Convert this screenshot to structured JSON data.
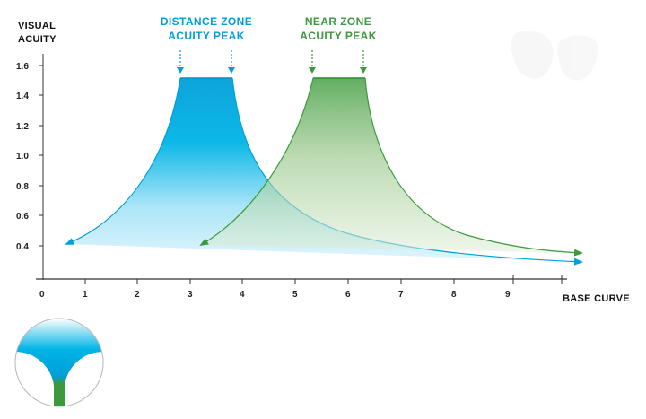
{
  "diagram": {
    "y_axis_title_line1": "VISUAL",
    "y_axis_title_line2": "ACUITY",
    "x_axis_title": "BASE CURVE",
    "y_ticks": [
      "1.6",
      "1.4",
      "1.2",
      "1.0",
      "0.8",
      "0.6",
      "0.4"
    ],
    "x_ticks": [
      "0",
      "1",
      "2",
      "3",
      "4",
      "5",
      "6",
      "7",
      "8",
      "9"
    ],
    "distance_peak_line1": "DISTANCE ZONE",
    "distance_peak_line2": "ACUITY PEAK",
    "near_peak_line1": "NEAR ZONE",
    "near_peak_line2": "ACUITY PEAK",
    "colors": {
      "distance_zone": "#009fd9",
      "distance_zone_light": "#cdeffb",
      "near_zone": "#3c9a3c",
      "near_zone_light": "#e3efdc",
      "axis": "#333333"
    },
    "icons": {
      "eye_lens": "lens-zones-icon",
      "faint_logo": "faint-glasses-icon"
    }
  }
}
